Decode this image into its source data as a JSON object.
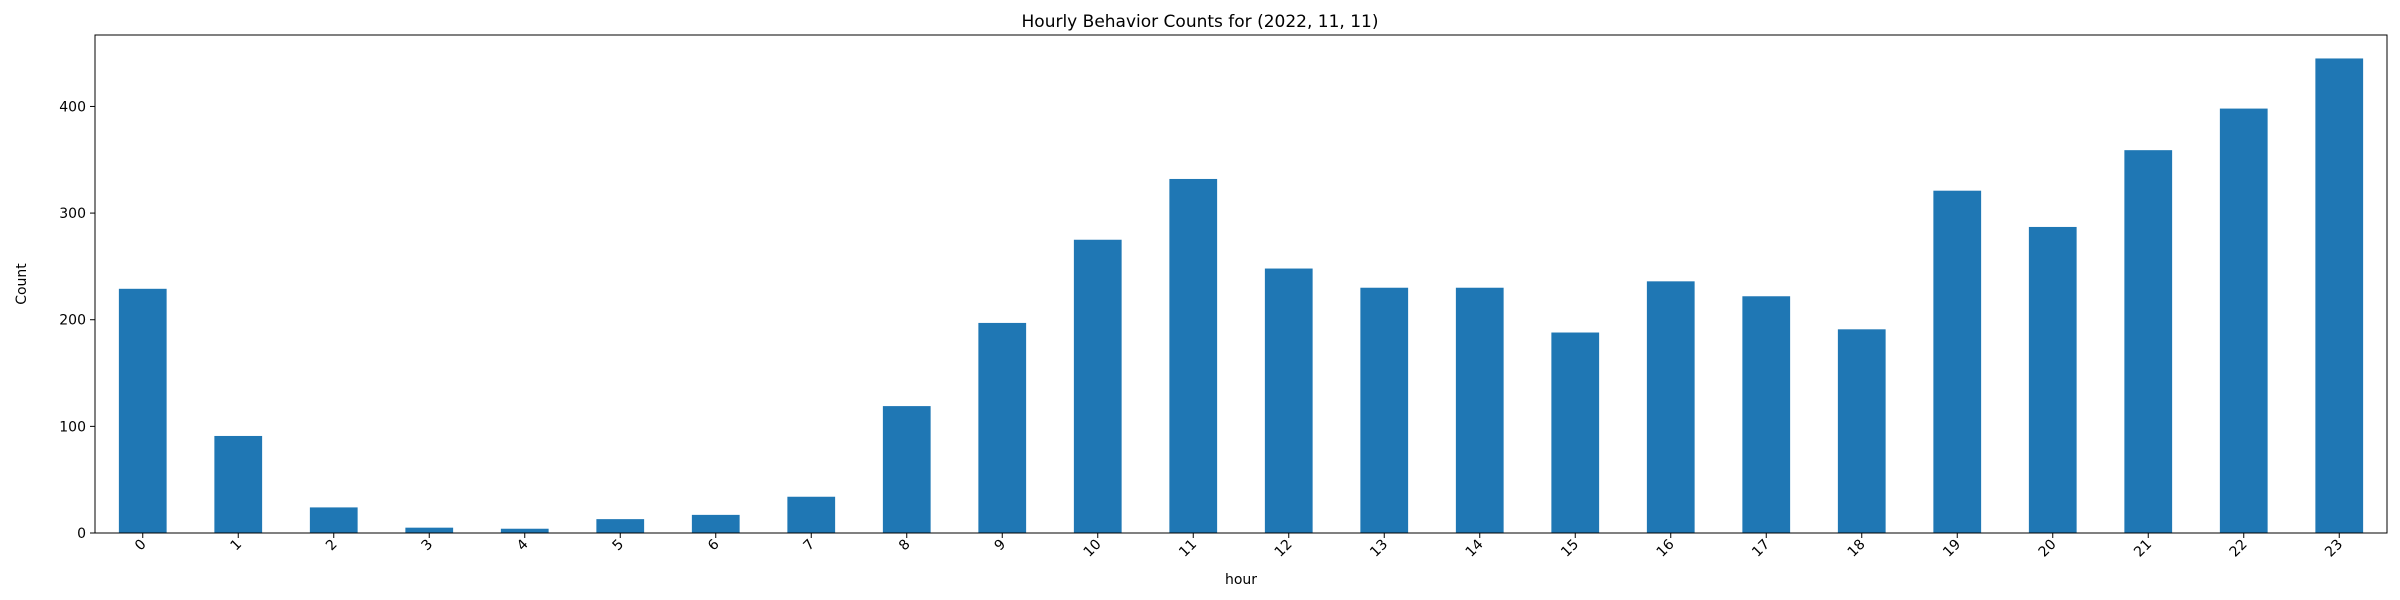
{
  "chart_data": {
    "type": "bar",
    "title": "Hourly Behavior Counts for (2022, 11, 11)",
    "xlabel": "hour",
    "ylabel": "Count",
    "categories": [
      "0",
      "1",
      "2",
      "3",
      "4",
      "5",
      "6",
      "7",
      "8",
      "9",
      "10",
      "11",
      "12",
      "13",
      "14",
      "15",
      "16",
      "17",
      "18",
      "19",
      "20",
      "21",
      "22",
      "23"
    ],
    "values": [
      229,
      91,
      24,
      5,
      4,
      13,
      17,
      34,
      119,
      197,
      275,
      332,
      248,
      230,
      230,
      188,
      236,
      222,
      191,
      321,
      287,
      359,
      398,
      445
    ],
    "ylim": [
      0,
      467
    ],
    "yticks": [
      0,
      100,
      200,
      300,
      400
    ],
    "grid": false,
    "legend": "none",
    "bar_color": "#1f77b4"
  }
}
